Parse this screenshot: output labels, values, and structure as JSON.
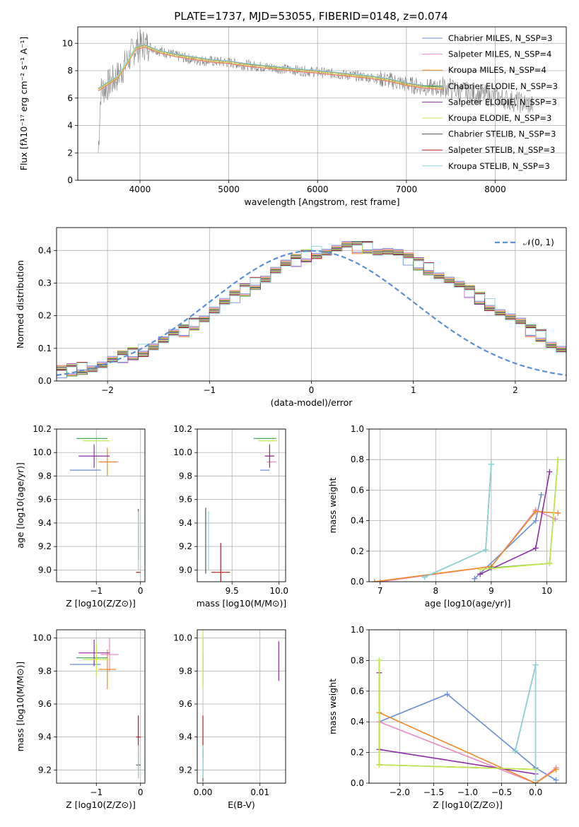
{
  "figure_title": "PLATE=1737, MJD=53055, FIBERID=0148, z=0.074",
  "series_colors": [
    "#6a8fd6",
    "#e88ac6",
    "#f08a24",
    "#3aa04a",
    "#8e2ba8",
    "#c7e84a",
    "#555555",
    "#b31b1b",
    "#8ed8dc"
  ],
  "data_color": "#808080",
  "model_color": "#6fd3d8",
  "chart_data": [
    {
      "type": "line",
      "xlabel": "wavelength [Angstrom, rest frame]",
      "ylabel": "Flux [fλ10⁻¹⁷ erg cm⁻² s⁻¹ A⁻¹]",
      "xlim": [
        3300,
        8800
      ],
      "ylim": [
        0,
        11.2
      ],
      "xticks": [
        "4000",
        "5000",
        "6000",
        "7000",
        "8000"
      ],
      "yticks": [
        "0",
        "2",
        "4",
        "6",
        "8",
        "10"
      ],
      "legend_position": "top-right",
      "legend": [
        "Chabrier MILES, N_SSP=3",
        "Salpeter MILES, N_SSP=4",
        "Kroupa MILES, N_SSP=4",
        "Chabrier ELODIE, N_SSP=3",
        "Salpeter ELODIE, N_SSP=3",
        "Kroupa ELODIE, N_SSP=3",
        "Chabrier STELIB, N_SSP=3",
        "Salpeter STELIB, N_SSP=3",
        "Kroupa STELIB, N_SSP=3"
      ],
      "spectrum_points": [
        [
          3530,
          2
        ],
        [
          3560,
          6.5
        ],
        [
          3650,
          7.0
        ],
        [
          3750,
          7.6
        ],
        [
          3850,
          8.6
        ],
        [
          3950,
          9.7
        ],
        [
          4050,
          9.9
        ],
        [
          4200,
          9.5
        ],
        [
          4400,
          9.1
        ],
        [
          4600,
          8.8
        ],
        [
          4800,
          8.7
        ],
        [
          5000,
          8.6
        ],
        [
          5200,
          8.4
        ],
        [
          5500,
          8.2
        ],
        [
          5800,
          8.0
        ],
        [
          6000,
          7.9
        ],
        [
          6300,
          7.7
        ],
        [
          6600,
          7.5
        ],
        [
          6800,
          7.3
        ],
        [
          7000,
          7.0
        ],
        [
          7200,
          6.8
        ],
        [
          7400,
          6.7
        ]
      ],
      "model_points": [
        [
          3530,
          6.6
        ],
        [
          3650,
          7.1
        ],
        [
          3750,
          7.5
        ],
        [
          3850,
          8.5
        ],
        [
          3950,
          9.6
        ],
        [
          4050,
          9.8
        ],
        [
          4200,
          9.4
        ],
        [
          4400,
          9.1
        ],
        [
          4600,
          8.9
        ],
        [
          4800,
          8.7
        ],
        [
          5000,
          8.6
        ],
        [
          5200,
          8.4
        ],
        [
          5500,
          8.2
        ],
        [
          5800,
          8.0
        ],
        [
          6000,
          7.9
        ],
        [
          6300,
          7.7
        ],
        [
          6600,
          7.5
        ],
        [
          6800,
          7.3
        ],
        [
          7000,
          7.0
        ],
        [
          7200,
          6.8
        ],
        [
          7420,
          6.7
        ]
      ],
      "grey_tail_points": [
        [
          7400,
          6.9
        ],
        [
          7600,
          6.5
        ],
        [
          7800,
          6.3
        ],
        [
          8000,
          6.1
        ],
        [
          8200,
          5.8
        ],
        [
          8400,
          5.5
        ]
      ]
    },
    {
      "type": "line",
      "xlabel": "(data-model)/error",
      "ylabel": "Normed distribution",
      "xlim": [
        -2.5,
        2.5
      ],
      "ylim": [
        0,
        0.47
      ],
      "xticks": [
        "−2",
        "−1",
        "0",
        "1",
        "2"
      ],
      "yticks": [
        "0.0",
        "0.1",
        "0.2",
        "0.3",
        "0.4"
      ],
      "legend_position": "top-right",
      "legend": [
        "𝒩(0, 1)"
      ],
      "bin_width": 0.1,
      "histogram_values": [
        0.03,
        0.035,
        0.04,
        0.045,
        0.05,
        0.06,
        0.075,
        0.085,
        0.095,
        0.11,
        0.125,
        0.14,
        0.155,
        0.175,
        0.2,
        0.22,
        0.24,
        0.26,
        0.28,
        0.3,
        0.32,
        0.34,
        0.355,
        0.37,
        0.385,
        0.395,
        0.4,
        0.405,
        0.41,
        0.41,
        0.41,
        0.405,
        0.4,
        0.39,
        0.375,
        0.36,
        0.345,
        0.33,
        0.31,
        0.29,
        0.275,
        0.255,
        0.235,
        0.215,
        0.195,
        0.175,
        0.155,
        0.14,
        0.12,
        0.1,
        0.085
      ]
    },
    {
      "type": "scatter",
      "xlabel": "Z [log10(Z/Z⊙)]",
      "ylabel": "age  [log10(age/yr)]",
      "xlim": [
        -1.9,
        0.1
      ],
      "ylim": [
        8.9,
        10.2
      ],
      "xticks": [
        "−1",
        "0"
      ],
      "yticks": [
        "9.0",
        "9.2",
        "9.4",
        "9.6",
        "9.8",
        "10.0",
        "10.2"
      ],
      "points": [
        {
          "x": -1.25,
          "y": 9.85,
          "xerr": 0.35,
          "yerr": 0.0,
          "c": 0
        },
        {
          "x": -0.7,
          "y": 9.92,
          "xerr": 0.2,
          "yerr": 0.0,
          "c": 1
        },
        {
          "x": -0.75,
          "y": 9.92,
          "xerr": 0.2,
          "yerr": 0.12,
          "c": 2
        },
        {
          "x": -1.1,
          "y": 10.12,
          "xerr": 0.35,
          "yerr": 0.0,
          "c": 3
        },
        {
          "x": -1.05,
          "y": 9.97,
          "xerr": 0.35,
          "yerr": 0.1,
          "c": 4
        },
        {
          "x": -1.0,
          "y": 10.1,
          "xerr": 0.3,
          "yerr": 0.0,
          "c": 5
        },
        {
          "x": -0.05,
          "y": 9.3,
          "xerr": 0.0,
          "yerr": 0.22,
          "c": 6
        },
        {
          "x": -0.05,
          "y": 8.98,
          "xerr": 0.05,
          "yerr": 0.0,
          "c": 7
        },
        {
          "x": -0.05,
          "y": 9.25,
          "xerr": 0.0,
          "yerr": 0.25,
          "c": 8
        }
      ]
    },
    {
      "type": "scatter",
      "xlabel": "mass [log10(M/M⊙)]",
      "ylabel": "",
      "xlim": [
        9.13,
        10.07
      ],
      "ylim": [
        8.9,
        10.2
      ],
      "xticks": [
        "9.5",
        "10.0"
      ],
      "yticks": [
        "9.0",
        "9.2",
        "9.4",
        "9.6",
        "9.8",
        "10.0",
        "10.2"
      ],
      "points": [
        {
          "x": 9.85,
          "y": 9.85,
          "xerr": 0.05,
          "yerr": 0.0,
          "c": 0
        },
        {
          "x": 9.92,
          "y": 9.92,
          "xerr": 0.05,
          "yerr": 0.0,
          "c": 1
        },
        {
          "x": 9.9,
          "y": 9.97,
          "xerr": 0.05,
          "yerr": 0.08,
          "c": 2
        },
        {
          "x": 9.85,
          "y": 10.12,
          "xerr": 0.12,
          "yerr": 0.0,
          "c": 3
        },
        {
          "x": 9.9,
          "y": 9.97,
          "xerr": 0.05,
          "yerr": 0.1,
          "c": 4
        },
        {
          "x": 9.88,
          "y": 10.1,
          "xerr": 0.1,
          "yerr": 0.0,
          "c": 5
        },
        {
          "x": 9.22,
          "y": 9.25,
          "xerr": 0.0,
          "yerr": 0.28,
          "c": 6
        },
        {
          "x": 9.38,
          "y": 8.98,
          "xerr": 0.1,
          "yerr": 0.25,
          "c": 7
        },
        {
          "x": 9.25,
          "y": 9.25,
          "xerr": 0.0,
          "yerr": 0.25,
          "c": 8
        }
      ]
    },
    {
      "type": "line",
      "xlabel": "age  [log10(age/yr)]",
      "ylabel": "mass weight",
      "xlim": [
        6.8,
        10.35
      ],
      "ylim": [
        0,
        1.0
      ],
      "xticks": [
        "7",
        "8",
        "9",
        "10"
      ],
      "yticks": [
        "0.0",
        "0.2",
        "0.4",
        "0.6",
        "0.8",
        "1.0"
      ],
      "series": [
        {
          "values": [
            [
              8.7,
              0.02
            ],
            [
              9.8,
              0.4
            ],
            [
              9.9,
              0.57
            ]
          ],
          "c": 0
        },
        {
          "values": [
            [
              7.0,
              0.0
            ],
            [
              9.0,
              0.1
            ],
            [
              9.8,
              0.47
            ],
            [
              10.15,
              0.41
            ]
          ],
          "c": 1
        },
        {
          "values": [
            [
              6.9,
              0.0
            ],
            [
              9.0,
              0.1
            ],
            [
              9.8,
              0.46
            ],
            [
              10.2,
              0.45
            ]
          ],
          "c": 2
        },
        {
          "values": [
            [
              9.0,
              0.09
            ],
            [
              10.05,
              0.12
            ],
            [
              10.2,
              0.8
            ]
          ],
          "c": 3
        },
        {
          "values": [
            [
              8.8,
              0.05
            ],
            [
              9.8,
              0.22
            ],
            [
              10.05,
              0.72
            ]
          ],
          "c": 4
        },
        {
          "values": [
            [
              8.8,
              0.08
            ],
            [
              10.05,
              0.12
            ],
            [
              10.2,
              0.8
            ]
          ],
          "c": 5
        },
        {
          "values": [
            [
              7.8,
              0.03
            ],
            [
              8.9,
              0.21
            ],
            [
              9.0,
              0.77
            ]
          ],
          "c": 6
        },
        {
          "values": [
            [
              7.8,
              0.03
            ],
            [
              8.9,
              0.21
            ],
            [
              9.0,
              0.77
            ]
          ],
          "c": 8
        }
      ]
    },
    {
      "type": "scatter",
      "xlabel": "Z [log10(Z/Z⊙)]",
      "ylabel": "mass [log10(M/M⊙)]",
      "xlim": [
        -1.9,
        0.1
      ],
      "ylim": [
        9.12,
        10.05
      ],
      "xticks": [
        "−1",
        "0"
      ],
      "yticks": [
        "9.2",
        "9.4",
        "9.6",
        "9.8",
        "10.0"
      ],
      "points": [
        {
          "x": -1.25,
          "y": 9.84,
          "xerr": 0.35,
          "yerr": 0.0,
          "c": 0
        },
        {
          "x": -0.7,
          "y": 9.9,
          "xerr": 0.2,
          "yerr": 0.1,
          "c": 1
        },
        {
          "x": -0.75,
          "y": 9.81,
          "xerr": 0.2,
          "yerr": 0.12,
          "c": 2
        },
        {
          "x": -1.1,
          "y": 9.88,
          "xerr": 0.35,
          "yerr": 0.0,
          "c": 3
        },
        {
          "x": -1.05,
          "y": 9.91,
          "xerr": 0.35,
          "yerr": 0.08,
          "c": 4
        },
        {
          "x": -1.0,
          "y": 9.87,
          "xerr": 0.3,
          "yerr": 0.1,
          "c": 5
        },
        {
          "x": -0.05,
          "y": 9.23,
          "xerr": 0.05,
          "yerr": 0.08,
          "c": 6
        },
        {
          "x": -0.05,
          "y": 9.4,
          "xerr": 0.05,
          "yerr": 0.13,
          "c": 7
        },
        {
          "x": -0.05,
          "y": 9.25,
          "xerr": 0.0,
          "yerr": 0.1,
          "c": 8
        }
      ]
    },
    {
      "type": "scatter",
      "xlabel": "E(B-V)",
      "ylabel": "",
      "xlim": [
        -0.001,
        0.0145
      ],
      "ylim": [
        9.12,
        10.05
      ],
      "xticks": [
        "0.00",
        "0.01"
      ],
      "yticks": [
        "9.2",
        "9.4",
        "9.6",
        "9.8",
        "10.0"
      ],
      "points": [
        {
          "x": 0.0,
          "y": 9.84,
          "xerr": 0.0,
          "yerr": 0.0,
          "c": 0
        },
        {
          "x": 0.0,
          "y": 9.9,
          "xerr": 0.0,
          "yerr": 0.1,
          "c": 1
        },
        {
          "x": 0.0,
          "y": 9.81,
          "xerr": 0.0,
          "yerr": 0.1,
          "c": 2
        },
        {
          "x": 0.0,
          "y": 9.88,
          "xerr": 0.0,
          "yerr": 0.0,
          "c": 3
        },
        {
          "x": 0.0133,
          "y": 9.86,
          "xerr": 0.0,
          "yerr": 0.12,
          "c": 4
        },
        {
          "x": 0.0,
          "y": 9.87,
          "xerr": 0.0,
          "yerr": 0.18,
          "c": 5
        },
        {
          "x": 0.0,
          "y": 9.23,
          "xerr": 0.0,
          "yerr": 0.1,
          "c": 6
        },
        {
          "x": 0.0,
          "y": 9.4,
          "xerr": 0.0,
          "yerr": 0.13,
          "c": 7
        },
        {
          "x": 0.0,
          "y": 9.25,
          "xerr": 0.0,
          "yerr": 0.1,
          "c": 8
        }
      ]
    },
    {
      "type": "line",
      "xlabel": "Z [log10(Z/Z⊙)]",
      "ylabel": "mass weight",
      "xlim": [
        -2.45,
        0.45
      ],
      "ylim": [
        0,
        1.0
      ],
      "xticks": [
        "−2.0",
        "−1.5",
        "−1.0",
        "−0.5",
        "0.0"
      ],
      "yticks": [
        "0.0",
        "0.2",
        "0.4",
        "0.6",
        "0.8",
        "1.0"
      ],
      "series": [
        {
          "values": [
            [
              -2.3,
              0.4
            ],
            [
              -1.3,
              0.58
            ],
            [
              0.0,
              0.1
            ],
            [
              0.3,
              0.02
            ]
          ],
          "c": 0
        },
        {
          "values": [
            [
              -2.3,
              0.4
            ],
            [
              0.0,
              0.0
            ],
            [
              0.3,
              0.1
            ]
          ],
          "c": 1
        },
        {
          "values": [
            [
              -2.3,
              0.46
            ],
            [
              0.0,
              0.0
            ],
            [
              0.3,
              0.09
            ]
          ],
          "c": 2
        },
        {
          "values": [
            [
              -2.3,
              0.8
            ],
            [
              -2.3,
              0.12
            ],
            [
              0.0,
              0.09
            ]
          ],
          "c": 3
        },
        {
          "values": [
            [
              -2.3,
              0.72
            ],
            [
              -2.3,
              0.22
            ],
            [
              0.0,
              0.06
            ]
          ],
          "c": 4
        },
        {
          "values": [
            [
              -2.3,
              0.8
            ],
            [
              -2.3,
              0.12
            ],
            [
              0.0,
              0.09
            ]
          ],
          "c": 5
        },
        {
          "values": [
            [
              -0.3,
              0.21
            ],
            [
              0.0,
              0.77
            ],
            [
              0.0,
              0.02
            ]
          ],
          "c": 6
        },
        {
          "values": [
            [
              -0.3,
              0.21
            ],
            [
              0.0,
              0.77
            ],
            [
              0.0,
              0.02
            ]
          ],
          "c": 8
        }
      ]
    }
  ]
}
